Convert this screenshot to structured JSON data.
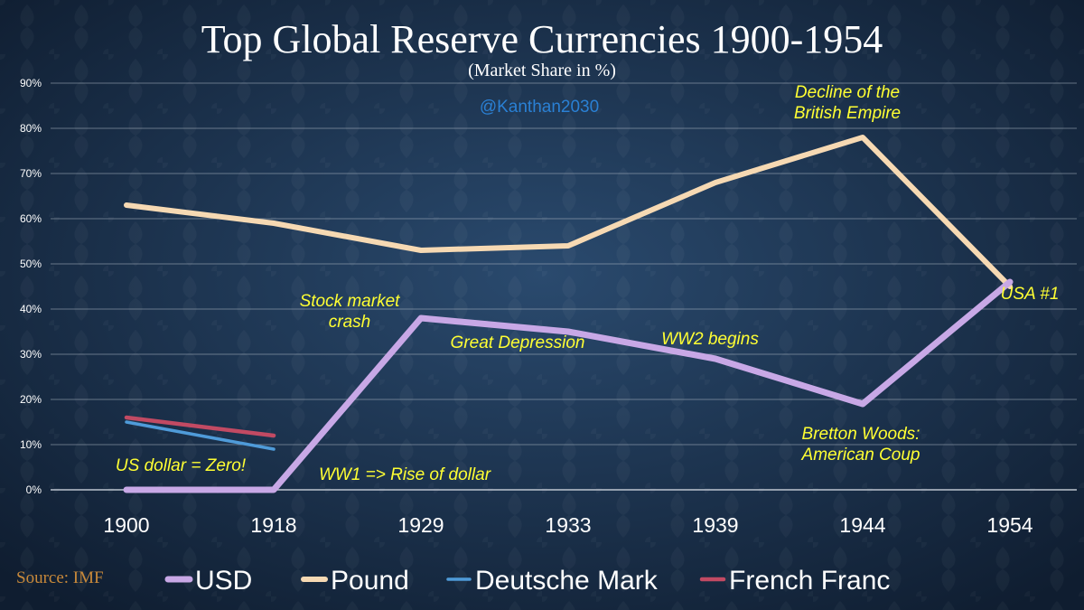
{
  "chart_data": {
    "type": "line",
    "title": "Top Global Reserve Currencies 1900-1954",
    "subtitle": "(Market Share in %)",
    "watermark": "@Kanthan2030",
    "source": "Source: IMF",
    "categories": [
      "1900",
      "1918",
      "1929",
      "1933",
      "1939",
      "1944",
      "1954"
    ],
    "ylim": [
      0,
      90
    ],
    "yticks": [
      "0%",
      "10%",
      "20%",
      "30%",
      "40%",
      "50%",
      "60%",
      "70%",
      "80%",
      "90%"
    ],
    "grid": true,
    "legend_position": "bottom",
    "series": [
      {
        "name": "USD",
        "color": "#c8a8e6",
        "values": [
          0,
          0,
          38,
          35,
          29,
          19,
          46
        ]
      },
      {
        "name": "Pound",
        "color": "#f6d9b3",
        "values": [
          63,
          59,
          53,
          54,
          68,
          78,
          45
        ]
      },
      {
        "name": "Deutsche Mark",
        "color": "#4f9bd9",
        "values": [
          15,
          9,
          null,
          null,
          null,
          null,
          null
        ]
      },
      {
        "name": "French Franc",
        "color": "#c24a63",
        "values": [
          16,
          12,
          null,
          null,
          null,
          null,
          null
        ]
      }
    ],
    "annotations": [
      {
        "lines": [
          "Decline of the",
          "British Empire"
        ]
      },
      {
        "lines": [
          "Stock market",
          "crash"
        ]
      },
      {
        "lines": [
          "Great Depression"
        ]
      },
      {
        "lines": [
          "WW2 begins"
        ]
      },
      {
        "lines": [
          "USA #1"
        ]
      },
      {
        "lines": [
          "Bretton Woods:",
          "American Coup"
        ]
      },
      {
        "lines": [
          "US dollar = Zero!"
        ]
      },
      {
        "lines": [
          "WW1 => Rise of dollar"
        ]
      }
    ]
  }
}
